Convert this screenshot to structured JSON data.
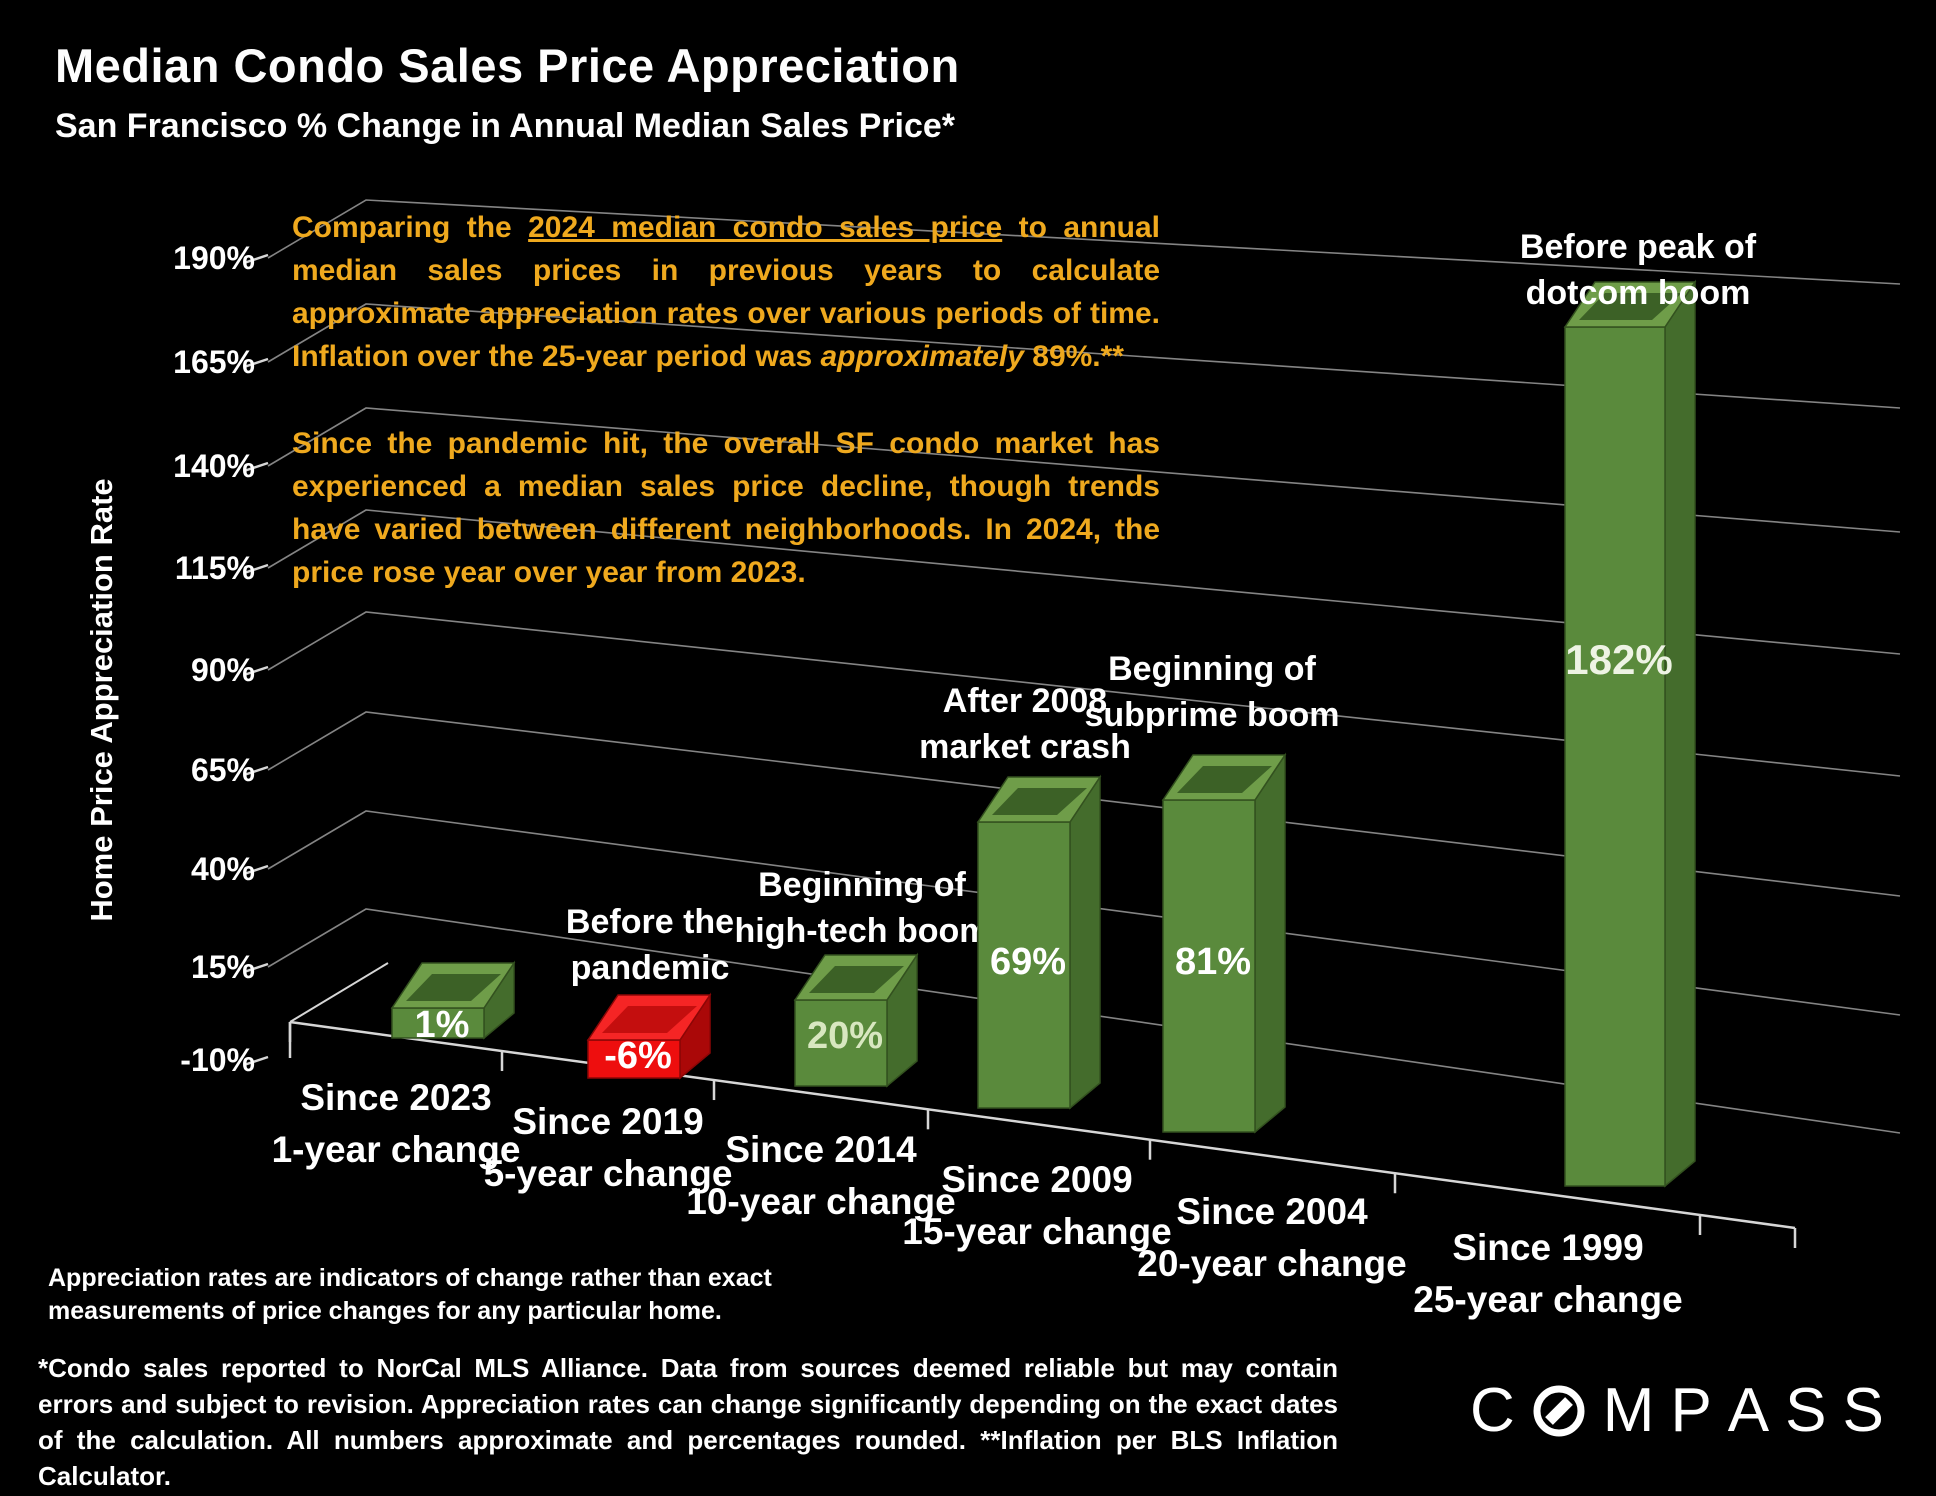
{
  "title": "Median Condo Sales Price Appreciation",
  "subtitle": "San Francisco % Change in Annual Median Sales Price*",
  "commentary": {
    "para1_pre": "Comparing the ",
    "para1_underline": "2024 median condo sales price",
    "para1_mid": " to annual median sales prices in previous years to calculate approximate appreciation rates over various periods of time. Inflation over the 25-year period was ",
    "para1_italic": "approximately",
    "para1_post": " 89%.**",
    "para2": "Since the pandemic hit, the overall SF condo market has experienced a median sales price decline, though trends have varied between different neighborhoods. In 2024, the price rose year over year from 2023."
  },
  "chart_data": {
    "type": "bar",
    "style": "3d-column",
    "title": "Median Condo Sales Price Appreciation",
    "xlabel": "",
    "ylabel": "Home Price Appreciation Rate",
    "ylim": [
      -10,
      190
    ],
    "y_tick_labels": [
      "190%",
      "165%",
      "140%",
      "115%",
      "90%",
      "65%",
      "40%",
      "15%",
      "-10%"
    ],
    "grid": true,
    "legend_position": "none",
    "categories": [
      [
        "Since 2023",
        "1-year change"
      ],
      [
        "Since 2019",
        "5-year change"
      ],
      [
        "Since 2014",
        "10-year change"
      ],
      [
        "Since 2009",
        "15-year change"
      ],
      [
        "Since 2004",
        "20-year change"
      ],
      [
        "Since 1999",
        "25-year change"
      ]
    ],
    "values": [
      1,
      -6,
      20,
      69,
      81,
      182
    ],
    "value_labels": [
      "1%",
      "-6%",
      "20%",
      "69%",
      "81%",
      "182%"
    ],
    "value_label_colors": [
      "#ffffff",
      "#ffffff",
      "#d8e7c0",
      "#ffffff",
      "#ffffff",
      "#eef3e4"
    ],
    "bar_annotations": [
      [],
      [
        "Before the",
        "pandemic"
      ],
      [
        "Beginning of",
        "high-tech boom"
      ],
      [
        "After 2008",
        "market crash"
      ],
      [
        "Beginning of",
        "subprime boom"
      ],
      [
        "Before peak of",
        "dotcom boom"
      ]
    ],
    "colors": {
      "positive_front": "#5a8a3c",
      "positive_side": "#446c2c",
      "positive_top": "#6f9d49",
      "positive_recess": "#3c6126",
      "positive_edge": "#33511f",
      "negative_front": "#ee0e0e",
      "negative_side": "#aa0808",
      "negative_top": "#f52525",
      "negative_recess": "#c40e0e",
      "negative_edge": "#8c0606",
      "gridline": "#848484",
      "axis": "#d6d6d6",
      "annotation_text": "#ffffff",
      "accent_text": "#efa91e"
    }
  },
  "footnotes": {
    "note1": "Appreciation rates are indicators of change rather than exact measurements of price changes for any particular home.",
    "note2": "*Condo sales reported to NorCal MLS Alliance. Data from sources deemed reliable but may contain errors and subject to revision. Appreciation rates can change significantly depending on the exact dates of the calculation. All numbers approximate and percentages rounded. **Inflation per BLS Inflation Calculator."
  },
  "logo": {
    "brand": "COMPASS"
  }
}
